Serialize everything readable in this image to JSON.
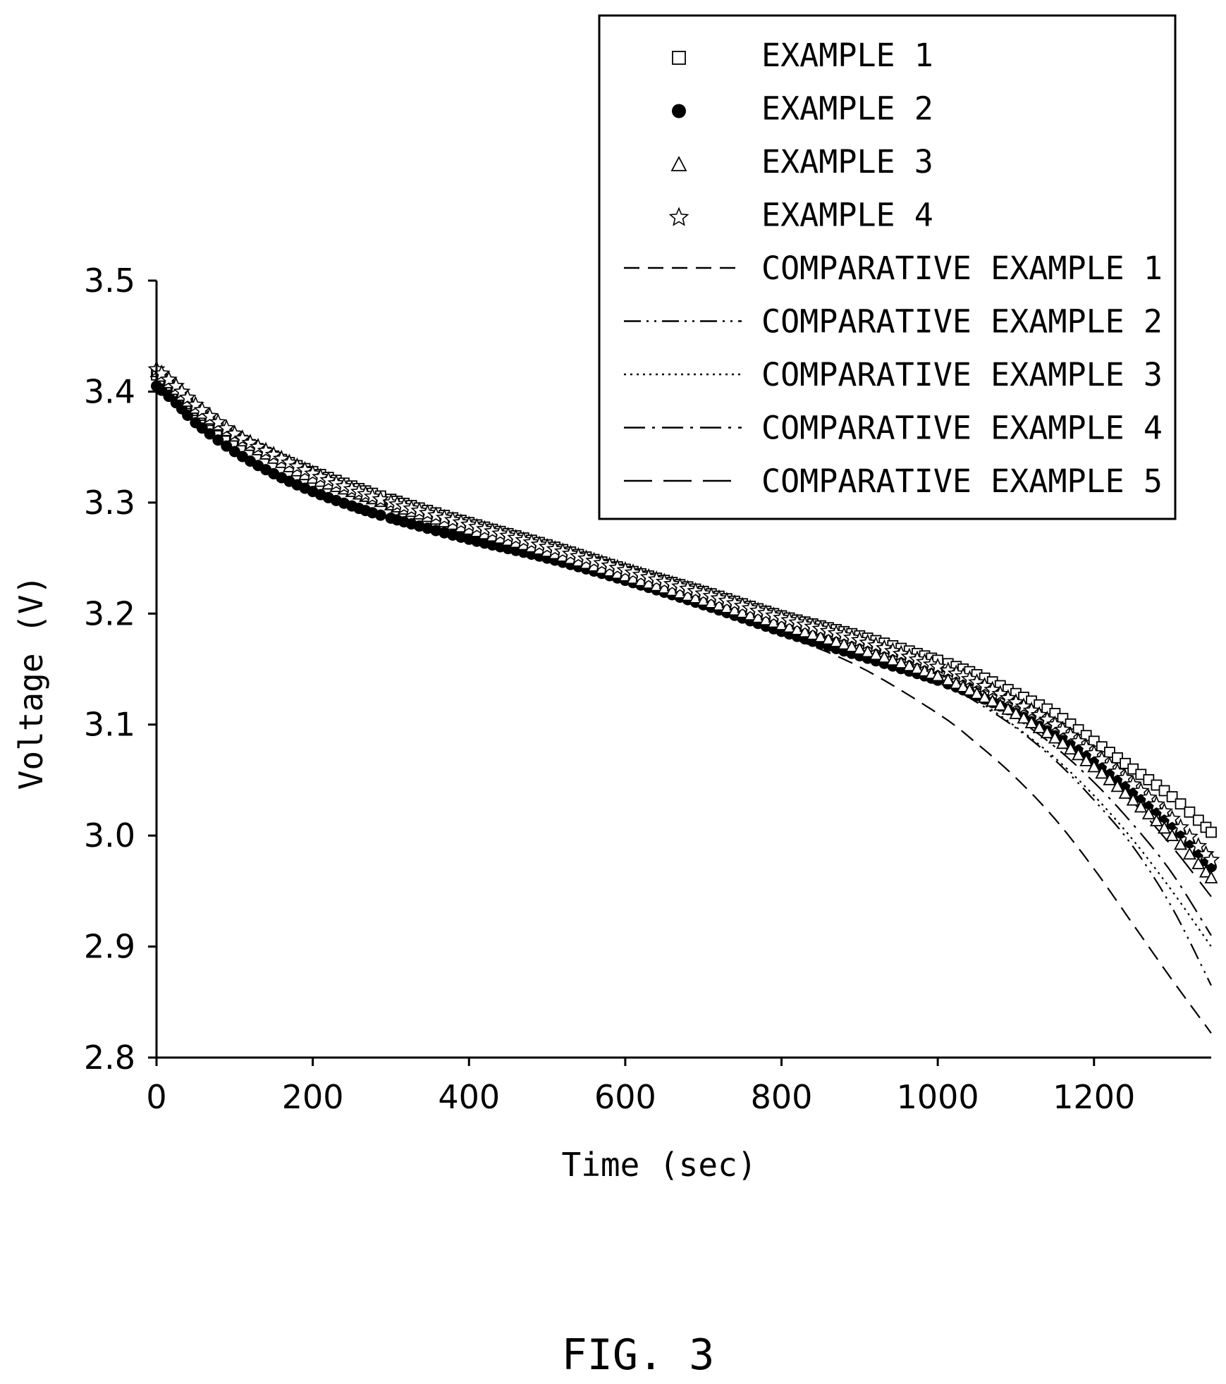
{
  "figure_label": "FIG. 3",
  "chart_data": {
    "type": "scatter",
    "xlabel": "Time (sec)",
    "ylabel": "Voltage (V)",
    "xlim": [
      0,
      1350
    ],
    "ylim": [
      2.8,
      3.5
    ],
    "x_ticks": [
      0,
      200,
      400,
      600,
      800,
      1000,
      1200
    ],
    "x_tick_labels": [
      "0",
      "200",
      "400",
      "600",
      "800",
      "1000",
      "1200"
    ],
    "y_ticks": [
      2.8,
      2.9,
      3.0,
      3.1,
      3.2,
      3.3,
      3.4,
      3.5
    ],
    "y_tick_labels": [
      "2.8",
      "2.9",
      "3.0",
      "3.1",
      "3.2",
      "3.3",
      "3.4",
      "3.5"
    ],
    "grid": false,
    "legend_position": "top-right",
    "series": [
      {
        "name": "EXAMPLE 1",
        "style": "open-square",
        "color": "#000000",
        "x": [
          0,
          25,
          50,
          100,
          150,
          200,
          250,
          300,
          400,
          500,
          600,
          700,
          800,
          900,
          1000,
          1050,
          1100,
          1150,
          1200,
          1250,
          1300,
          1350
        ],
        "y": [
          3.415,
          3.4,
          3.383,
          3.36,
          3.342,
          3.328,
          3.315,
          3.303,
          3.282,
          3.262,
          3.24,
          3.22,
          3.198,
          3.18,
          3.158,
          3.145,
          3.128,
          3.11,
          3.085,
          3.06,
          3.035,
          3.003
        ]
      },
      {
        "name": "EXAMPLE 2",
        "style": "filled-circle",
        "color": "#000000",
        "x": [
          0,
          25,
          50,
          100,
          150,
          200,
          250,
          300,
          400,
          500,
          600,
          700,
          800,
          900,
          1000,
          1050,
          1100,
          1150,
          1200,
          1250,
          1300,
          1350
        ],
        "y": [
          3.405,
          3.39,
          3.372,
          3.346,
          3.326,
          3.31,
          3.297,
          3.286,
          3.267,
          3.25,
          3.23,
          3.208,
          3.184,
          3.162,
          3.14,
          3.126,
          3.11,
          3.09,
          3.066,
          3.04,
          3.01,
          2.972
        ]
      },
      {
        "name": "EXAMPLE 3",
        "style": "open-triangle",
        "color": "#000000",
        "x": [
          0,
          25,
          50,
          100,
          150,
          200,
          250,
          300,
          400,
          500,
          600,
          700,
          800,
          900,
          1000,
          1050,
          1100,
          1150,
          1200,
          1250,
          1300,
          1350
        ],
        "y": [
          3.418,
          3.402,
          3.385,
          3.36,
          3.34,
          3.322,
          3.31,
          3.298,
          3.276,
          3.256,
          3.234,
          3.212,
          3.19,
          3.168,
          3.144,
          3.128,
          3.11,
          3.088,
          3.062,
          3.032,
          3.0,
          2.962
        ]
      },
      {
        "name": "EXAMPLE 4",
        "style": "open-star",
        "color": "#000000",
        "x": [
          0,
          25,
          50,
          100,
          150,
          200,
          250,
          300,
          400,
          500,
          600,
          700,
          800,
          900,
          1000,
          1050,
          1100,
          1150,
          1200,
          1250,
          1300,
          1350
        ],
        "y": [
          3.42,
          3.405,
          3.388,
          3.362,
          3.343,
          3.326,
          3.312,
          3.3,
          3.28,
          3.26,
          3.239,
          3.218,
          3.196,
          3.176,
          3.152,
          3.138,
          3.12,
          3.1,
          3.074,
          3.046,
          3.015,
          2.978
        ]
      },
      {
        "name": "COMPARATIVE EXAMPLE 1",
        "style": "dashed",
        "color": "#000000",
        "x": [
          0,
          100,
          200,
          300,
          400,
          500,
          600,
          700,
          800,
          900,
          1000,
          1050,
          1100,
          1150,
          1200,
          1250,
          1300,
          1350
        ],
        "y": [
          3.415,
          3.36,
          3.326,
          3.3,
          3.28,
          3.26,
          3.236,
          3.21,
          3.182,
          3.152,
          3.11,
          3.083,
          3.052,
          3.015,
          2.97,
          2.92,
          2.87,
          2.822
        ]
      },
      {
        "name": "COMPARATIVE EXAMPLE 2",
        "style": "dash-dot-dot",
        "color": "#000000",
        "x": [
          0,
          100,
          200,
          300,
          400,
          500,
          600,
          700,
          800,
          900,
          1000,
          1050,
          1100,
          1150,
          1200,
          1250,
          1300,
          1350
        ],
        "y": [
          3.418,
          3.362,
          3.328,
          3.302,
          3.28,
          3.26,
          3.238,
          3.215,
          3.192,
          3.168,
          3.14,
          3.12,
          3.097,
          3.068,
          3.032,
          2.99,
          2.935,
          2.865
        ]
      },
      {
        "name": "COMPARATIVE EXAMPLE 3",
        "style": "dotted",
        "color": "#000000",
        "x": [
          0,
          100,
          200,
          300,
          400,
          500,
          600,
          700,
          800,
          900,
          1000,
          1050,
          1100,
          1150,
          1200,
          1250,
          1300,
          1350
        ],
        "y": [
          3.418,
          3.362,
          3.328,
          3.302,
          3.281,
          3.261,
          3.24,
          3.218,
          3.196,
          3.172,
          3.142,
          3.122,
          3.098,
          3.07,
          3.036,
          2.996,
          2.95,
          2.9
        ]
      },
      {
        "name": "COMPARATIVE EXAMPLE 4",
        "style": "dash-dot",
        "color": "#000000",
        "x": [
          0,
          100,
          200,
          300,
          400,
          500,
          600,
          700,
          800,
          900,
          1000,
          1050,
          1100,
          1150,
          1200,
          1250,
          1300,
          1350
        ],
        "y": [
          3.418,
          3.362,
          3.328,
          3.302,
          3.281,
          3.261,
          3.24,
          3.218,
          3.196,
          3.174,
          3.146,
          3.128,
          3.106,
          3.08,
          3.048,
          3.01,
          2.966,
          2.91
        ]
      },
      {
        "name": "COMPARATIVE EXAMPLE 5",
        "style": "long-dash",
        "color": "#000000",
        "x": [
          0,
          100,
          200,
          300,
          400,
          500,
          600,
          700,
          800,
          900,
          1000,
          1050,
          1100,
          1150,
          1200,
          1250,
          1300,
          1350
        ],
        "y": [
          3.418,
          3.362,
          3.328,
          3.302,
          3.281,
          3.261,
          3.24,
          3.22,
          3.198,
          3.176,
          3.15,
          3.133,
          3.113,
          3.09,
          3.062,
          3.03,
          2.99,
          2.945
        ]
      }
    ]
  }
}
